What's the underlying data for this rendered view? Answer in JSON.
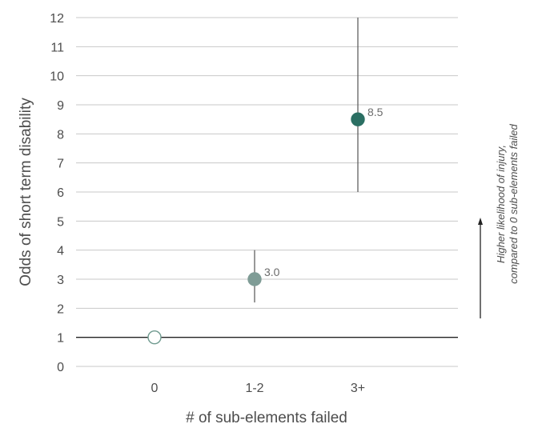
{
  "chart_data": {
    "type": "scatter",
    "ylabel": "Odds of short term disability",
    "xlabel": "# of sub-elements failed",
    "ylim": [
      0,
      12
    ],
    "yticks": [
      0,
      1,
      2,
      3,
      4,
      5,
      6,
      7,
      8,
      9,
      10,
      11,
      12
    ],
    "categories": [
      "0",
      "1-2",
      "3+"
    ],
    "points": [
      {
        "category": "0",
        "value": 1.0,
        "ci_low": null,
        "ci_high": null,
        "label": "",
        "color": "#ffffff",
        "stroke": "#6f9a8f"
      },
      {
        "category": "1-2",
        "value": 3.0,
        "ci_low": 2.2,
        "ci_high": 4.0,
        "label": "3.0",
        "color": "#7f9c96",
        "stroke": "#7f9c96"
      },
      {
        "category": "3+",
        "value": 8.5,
        "ci_low": 6.0,
        "ci_high": 12.0,
        "label": "8.5",
        "color": "#2b6f63",
        "stroke": "#2b6f63"
      }
    ],
    "reference_line": 1,
    "grid": true,
    "annotation": {
      "line1": "Higher likelihood of injury,",
      "line2": "compared to 0 sub-elements failed"
    }
  }
}
